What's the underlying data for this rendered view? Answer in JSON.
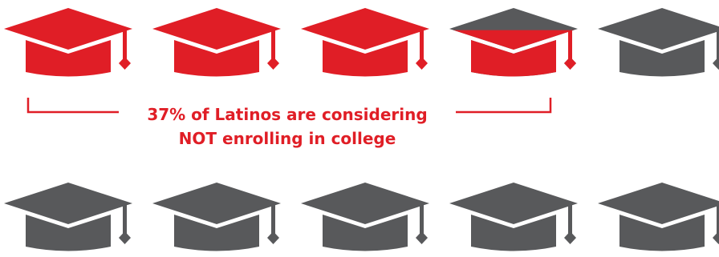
{
  "chart_data": {
    "type": "pictograph",
    "icon": "graduation-cap-icon",
    "total_icons": 10,
    "highlighted_fraction": 0.37,
    "value_percent": 37,
    "annotation": {
      "line1": "37% of Latinos are considering",
      "line2": "NOT enrolling in college"
    }
  },
  "colors": {
    "highlight": "#e01e26",
    "base": "#58595b",
    "annotation_text": "#e01e26",
    "bracket": "#e01e26"
  }
}
